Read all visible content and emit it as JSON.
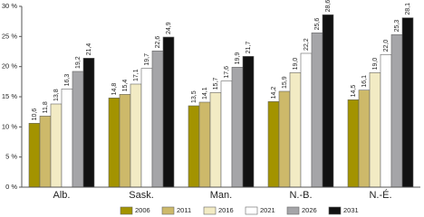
{
  "chart_data": {
    "type": "bar",
    "categories": [
      "Alb.",
      "Sask.",
      "Man.",
      "N.-B.",
      "N.-É."
    ],
    "series": [
      {
        "name": "2006",
        "color": "#a39300",
        "values": [
          10.6,
          14.8,
          13.5,
          14.2,
          14.5
        ],
        "value_labels": [
          "10,6",
          "14,8",
          "13,5",
          "14,2",
          "14,5"
        ]
      },
      {
        "name": "2011",
        "color": "#cdb96a",
        "values": [
          11.8,
          15.4,
          14.1,
          15.9,
          16.1
        ],
        "value_labels": [
          "11,8",
          "15,4",
          "14,1",
          "15,9",
          "16,1"
        ]
      },
      {
        "name": "2016",
        "color": "#f2ebc4",
        "values": [
          13.8,
          17.1,
          15.7,
          19.0,
          19.0
        ],
        "value_labels": [
          "13,8",
          "17,1",
          "15,7",
          "19,0",
          "19,0"
        ]
      },
      {
        "name": "2021",
        "color": "#ffffff",
        "values": [
          16.3,
          19.7,
          17.6,
          22.2,
          22.0
        ],
        "value_labels": [
          "16,3",
          "19,7",
          "17,6",
          "22,2",
          "22,0"
        ]
      },
      {
        "name": "2026",
        "color": "#a5a5a8",
        "values": [
          19.2,
          22.6,
          19.9,
          25.6,
          25.3
        ],
        "value_labels": [
          "19,2",
          "22,6",
          "19,9",
          "25,6",
          "25,3"
        ]
      },
      {
        "name": "2031",
        "color": "#111111",
        "values": [
          21.4,
          24.9,
          21.7,
          28.6,
          28.1
        ],
        "value_labels": [
          "21,4",
          "24,9",
          "21,7",
          "28,6",
          "28,1"
        ]
      }
    ],
    "ylim": [
      0,
      30
    ],
    "yticks": [
      {
        "value": 0,
        "label": "0 %"
      },
      {
        "value": 5,
        "label": "5 %"
      },
      {
        "value": 10,
        "label": "10 %"
      },
      {
        "value": 15,
        "label": "15 %"
      },
      {
        "value": 20,
        "label": "20 %"
      },
      {
        "value": 25,
        "label": "25 %"
      },
      {
        "value": 30,
        "label": "30 %"
      }
    ],
    "grid": false,
    "legend": "bottom"
  }
}
